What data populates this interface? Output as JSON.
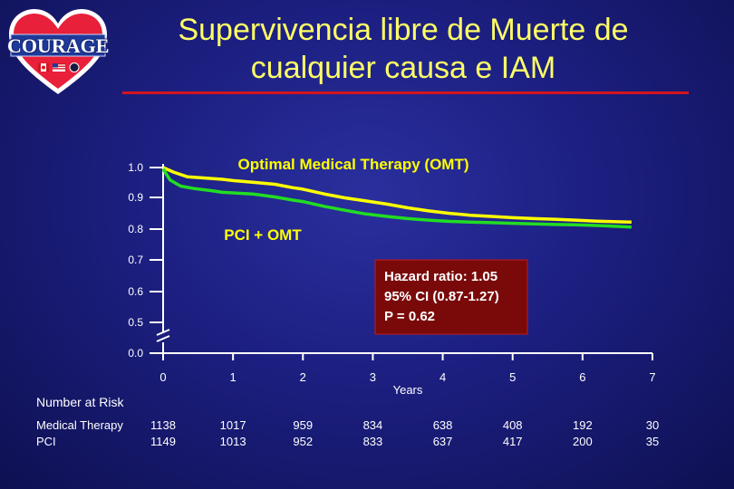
{
  "title_line1": "Supervivencia libre de Muerte de",
  "title_line2": "cualquier causa e IAM",
  "logo": {
    "text": "COURAGE",
    "colors": {
      "heart": "#e8203a",
      "border": "#ffffff",
      "banner": "#1e3a9a"
    }
  },
  "colors": {
    "omt": "#ffff00",
    "pci": "#22dd22",
    "axis": "#ffffff",
    "hazard_box": "#7a0a0a",
    "title": "#ffff66",
    "rule": "#d4141e"
  },
  "chart_data": {
    "type": "line",
    "xlabel": "Years",
    "ylabel": "",
    "x_ticks": [
      "0",
      "1",
      "2",
      "3",
      "4",
      "5",
      "6",
      "7"
    ],
    "y_ticks": [
      "0.0",
      "0.5",
      "0.6",
      "0.7",
      "0.8",
      "0.9",
      "1.0"
    ],
    "xlim": [
      0,
      7
    ],
    "ylim": [
      0.45,
      1.0
    ],
    "y_axis_break": true,
    "series": [
      {
        "name": "Optimal Medical Therapy (OMT)",
        "key": "omt",
        "x": [
          0,
          0.15,
          0.35,
          0.6,
          0.85,
          1.0,
          1.3,
          1.6,
          1.85,
          2.0,
          2.3,
          2.6,
          2.9,
          3.2,
          3.5,
          3.8,
          4.1,
          4.4,
          4.7,
          5.0,
          5.3,
          5.6,
          5.9,
          6.2,
          6.5,
          6.7
        ],
        "y": [
          1.0,
          0.985,
          0.97,
          0.966,
          0.962,
          0.958,
          0.952,
          0.946,
          0.935,
          0.93,
          0.915,
          0.902,
          0.892,
          0.882,
          0.87,
          0.86,
          0.852,
          0.846,
          0.842,
          0.838,
          0.835,
          0.833,
          0.83,
          0.827,
          0.825,
          0.824
        ]
      },
      {
        "name": "PCI + OMT",
        "key": "pci",
        "x": [
          0,
          0.1,
          0.25,
          0.45,
          0.7,
          0.85,
          1.0,
          1.3,
          1.6,
          1.85,
          2.0,
          2.3,
          2.6,
          2.9,
          3.2,
          3.5,
          3.8,
          4.1,
          4.4,
          4.7,
          5.0,
          5.3,
          5.6,
          5.9,
          6.2,
          6.5,
          6.7
        ],
        "y": [
          0.995,
          0.96,
          0.94,
          0.932,
          0.925,
          0.92,
          0.918,
          0.914,
          0.905,
          0.895,
          0.89,
          0.875,
          0.862,
          0.85,
          0.842,
          0.835,
          0.83,
          0.826,
          0.824,
          0.822,
          0.82,
          0.818,
          0.816,
          0.815,
          0.813,
          0.81,
          0.808
        ]
      }
    ],
    "annotations": [
      {
        "text": "Optimal Medical Therapy (OMT)",
        "color": "#ffff00"
      },
      {
        "text": "PCI + OMT",
        "color": "#ffff00"
      }
    ],
    "hazard": {
      "line1": "Hazard ratio: 1.05",
      "line2": "95% CI (0.87-1.27)",
      "line3": "P = 0.62"
    }
  },
  "risk_table": {
    "header": "Number at Risk",
    "rows": [
      {
        "label": "Medical Therapy",
        "values": [
          "1138",
          "1017",
          "959",
          "834",
          "638",
          "408",
          "192",
          "30"
        ]
      },
      {
        "label": "PCI",
        "values": [
          "1149",
          "1013",
          "952",
          "833",
          "637",
          "417",
          "200",
          "35"
        ]
      }
    ]
  }
}
